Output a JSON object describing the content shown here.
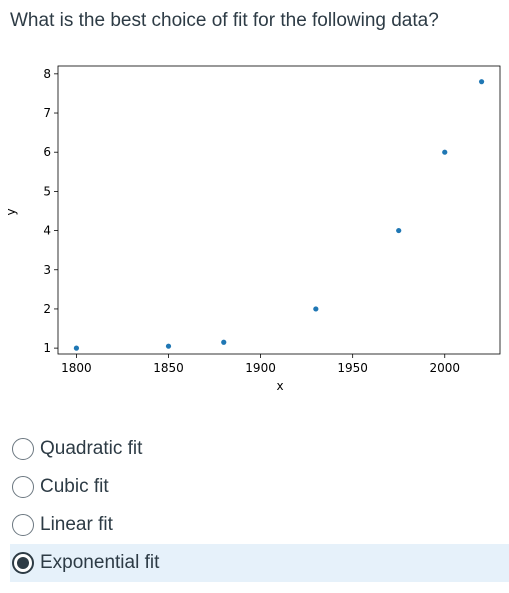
{
  "question": "What is the best choice of fit for the following data?",
  "chart_data": {
    "type": "scatter",
    "title": "",
    "xlabel": "x",
    "ylabel": "y",
    "x": [
      1800,
      1850,
      1880,
      1930,
      1975,
      2000,
      2020
    ],
    "y": [
      1.0,
      1.05,
      1.15,
      2.0,
      4.0,
      6.0,
      7.8
    ],
    "xlim": [
      1790,
      2030
    ],
    "ylim": [
      0.85,
      8.2
    ],
    "xticks": [
      1800,
      1850,
      1900,
      1950,
      2000
    ],
    "yticks": [
      1,
      2,
      3,
      4,
      5,
      6,
      7,
      8
    ],
    "point_color": "#1f77b4",
    "grid": false
  },
  "choices": [
    {
      "label": "Quadratic fit",
      "selected": false
    },
    {
      "label": "Cubic fit",
      "selected": false
    },
    {
      "label": "Linear fit",
      "selected": false
    },
    {
      "label": "Exponential fit",
      "selected": true
    }
  ]
}
